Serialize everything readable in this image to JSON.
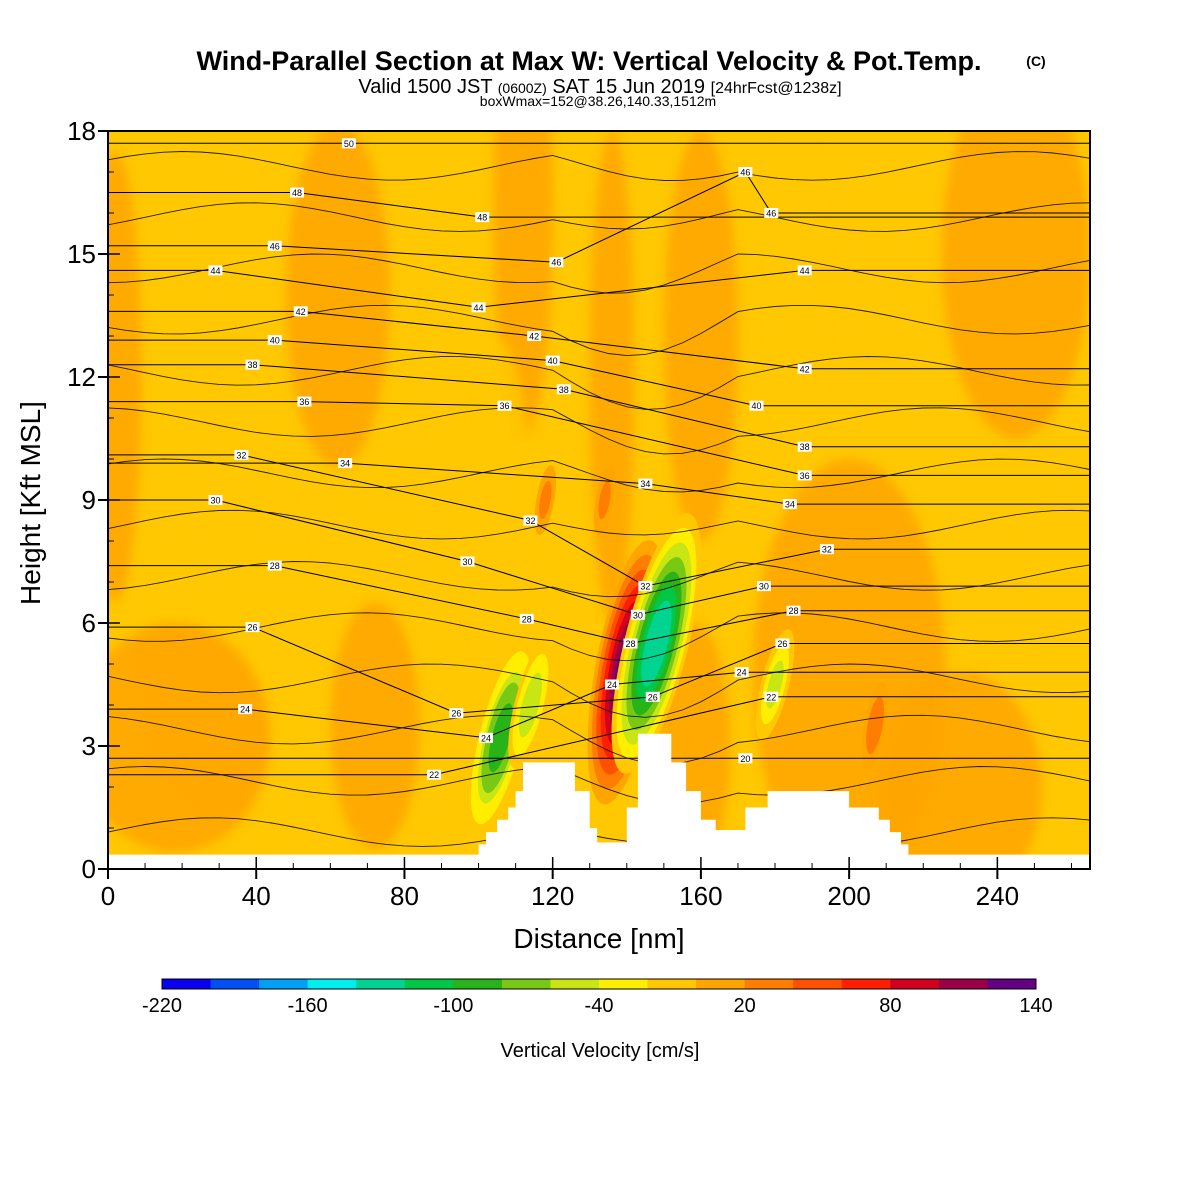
{
  "chart_data": {
    "type": "heatmap",
    "title": "Wind-Parallel Section at Max W: Vertical Velocity & Pot.Temp.",
    "title_mark": "(C)",
    "subtitle": {
      "prefix": "Valid 1500 JST",
      "utc": "(0600Z)",
      "date": "SAT 15 Jun 2019",
      "forecast": "[24hrFcst@1238z]"
    },
    "subtitle2": "boxWmax=152@38.26,140.33,1512m",
    "xlabel": "Distance [nm]",
    "ylabel": "Height [Kft MSL]",
    "xlim": [
      0,
      265
    ],
    "ylim": [
      0,
      18
    ],
    "x_ticks": [
      "0",
      "40",
      "80",
      "120",
      "160",
      "200",
      "240"
    ],
    "y_ticks": [
      "0",
      "3",
      "6",
      "9",
      "12",
      "15",
      "18"
    ],
    "colorbar": {
      "label": "Vertical Velocity [cm/s]",
      "tick_labels": [
        "-220",
        "-160",
        "-100",
        "-40",
        "20",
        "80",
        "140"
      ],
      "levels": [
        -220,
        -200,
        -180,
        -160,
        -140,
        -120,
        -100,
        -80,
        -60,
        -40,
        -20,
        0,
        20,
        40,
        60,
        80,
        100,
        120,
        140
      ],
      "colors": [
        "#0a00f0",
        "#0050f5",
        "#00a0f5",
        "#00eeee",
        "#00d490",
        "#00c846",
        "#28b418",
        "#78c814",
        "#c8e614",
        "#ffee00",
        "#ffc800",
        "#ffa500",
        "#ff7d00",
        "#ff5000",
        "#ff1e00",
        "#d2001e",
        "#9b0046",
        "#640082"
      ]
    },
    "terrain_profile_nm_kft": [
      [
        0,
        0.35
      ],
      [
        100,
        0.35
      ],
      [
        100,
        0.6
      ],
      [
        102,
        0.6
      ],
      [
        102,
        0.9
      ],
      [
        105,
        0.9
      ],
      [
        105,
        1.2
      ],
      [
        108,
        1.2
      ],
      [
        108,
        1.5
      ],
      [
        110,
        1.5
      ],
      [
        110,
        1.9
      ],
      [
        112,
        1.9
      ],
      [
        112,
        2.6
      ],
      [
        118,
        2.6
      ],
      [
        118,
        2.6
      ],
      [
        126,
        2.6
      ],
      [
        126,
        1.9
      ],
      [
        130,
        1.9
      ],
      [
        130,
        1.0
      ],
      [
        132,
        1.0
      ],
      [
        132,
        0.65
      ],
      [
        140,
        0.65
      ],
      [
        140,
        1.5
      ],
      [
        143,
        1.5
      ],
      [
        143,
        3.3
      ],
      [
        152,
        3.3
      ],
      [
        152,
        2.6
      ],
      [
        156,
        2.6
      ],
      [
        156,
        1.9
      ],
      [
        160,
        1.9
      ],
      [
        160,
        1.2
      ],
      [
        164,
        1.2
      ],
      [
        164,
        0.95
      ],
      [
        172,
        0.95
      ],
      [
        172,
        1.5
      ],
      [
        178,
        1.5
      ],
      [
        178,
        1.9
      ],
      [
        200,
        1.9
      ],
      [
        200,
        1.5
      ],
      [
        208,
        1.5
      ],
      [
        208,
        1.2
      ],
      [
        211,
        1.2
      ],
      [
        211,
        0.9
      ],
      [
        214,
        0.9
      ],
      [
        214,
        0.6
      ],
      [
        216,
        0.6
      ],
      [
        216,
        0.35
      ],
      [
        265,
        0.35
      ]
    ],
    "updraft_cores": [
      {
        "x": 140,
        "y": 4.8,
        "w_max": 152
      },
      {
        "x": 134,
        "y": 9.0,
        "w_max": 25
      },
      {
        "x": 118,
        "y": 9.0,
        "w_max": 25
      },
      {
        "x": 207,
        "y": 3.5,
        "w_max": 35
      }
    ],
    "downdraft_cores": [
      {
        "x": 148,
        "y": 5.5,
        "w_min": -140
      },
      {
        "x": 106,
        "y": 3.2,
        "w_min": -100
      },
      {
        "x": 114,
        "y": 4.0,
        "w_min": -60
      },
      {
        "x": 180,
        "y": 4.5,
        "w_min": -50
      }
    ],
    "theta_contour_labels": [
      {
        "text": "50",
        "x": 65,
        "y": 17.7
      },
      {
        "text": "48",
        "x": 51,
        "y": 16.5
      },
      {
        "text": "46",
        "x": 45,
        "y": 15.2
      },
      {
        "text": "44",
        "x": 29,
        "y": 14.6
      },
      {
        "text": "42",
        "x": 52,
        "y": 13.6
      },
      {
        "text": "40",
        "x": 45,
        "y": 12.9
      },
      {
        "text": "38",
        "x": 39,
        "y": 12.3
      },
      {
        "text": "36",
        "x": 53,
        "y": 11.4
      },
      {
        "text": "32",
        "x": 36,
        "y": 10.1
      },
      {
        "text": "34",
        "x": 64,
        "y": 9.9
      },
      {
        "text": "30",
        "x": 29,
        "y": 9.0
      },
      {
        "text": "28",
        "x": 45,
        "y": 7.4
      },
      {
        "text": "26",
        "x": 39,
        "y": 5.9
      },
      {
        "text": "24",
        "x": 37,
        "y": 3.9
      },
      {
        "text": "48",
        "x": 101,
        "y": 15.9
      },
      {
        "text": "46",
        "x": 121,
        "y": 14.8
      },
      {
        "text": "44",
        "x": 100,
        "y": 13.7
      },
      {
        "text": "42",
        "x": 115,
        "y": 13.0
      },
      {
        "text": "40",
        "x": 120,
        "y": 12.4
      },
      {
        "text": "38",
        "x": 123,
        "y": 11.7
      },
      {
        "text": "36",
        "x": 107,
        "y": 11.3
      },
      {
        "text": "32",
        "x": 114,
        "y": 8.5
      },
      {
        "text": "30",
        "x": 97,
        "y": 7.5
      },
      {
        "text": "28",
        "x": 113,
        "y": 6.1
      },
      {
        "text": "26",
        "x": 94,
        "y": 3.8
      },
      {
        "text": "24",
        "x": 102,
        "y": 3.2
      },
      {
        "text": "22",
        "x": 88,
        "y": 2.3
      },
      {
        "text": "34",
        "x": 145,
        "y": 9.4
      },
      {
        "text": "32",
        "x": 145,
        "y": 6.9
      },
      {
        "text": "30",
        "x": 143,
        "y": 6.2
      },
      {
        "text": "28",
        "x": 141,
        "y": 5.5
      },
      {
        "text": "24",
        "x": 136,
        "y": 4.5
      },
      {
        "text": "26",
        "x": 147,
        "y": 4.2
      },
      {
        "text": "46",
        "x": 172,
        "y": 17.0
      },
      {
        "text": "46",
        "x": 179,
        "y": 16.0
      },
      {
        "text": "44",
        "x": 188,
        "y": 14.6
      },
      {
        "text": "42",
        "x": 188,
        "y": 12.2
      },
      {
        "text": "40",
        "x": 175,
        "y": 11.3
      },
      {
        "text": "38",
        "x": 188,
        "y": 10.3
      },
      {
        "text": "36",
        "x": 188,
        "y": 9.6
      },
      {
        "text": "34",
        "x": 184,
        "y": 8.9
      },
      {
        "text": "32",
        "x": 194,
        "y": 7.8
      },
      {
        "text": "30",
        "x": 177,
        "y": 6.9
      },
      {
        "text": "28",
        "x": 185,
        "y": 6.3
      },
      {
        "text": "26",
        "x": 182,
        "y": 5.5
      },
      {
        "text": "24",
        "x": 171,
        "y": 4.8
      },
      {
        "text": "22",
        "x": 179,
        "y": 4.2
      },
      {
        "text": "20",
        "x": 172,
        "y": 2.7
      }
    ]
  }
}
